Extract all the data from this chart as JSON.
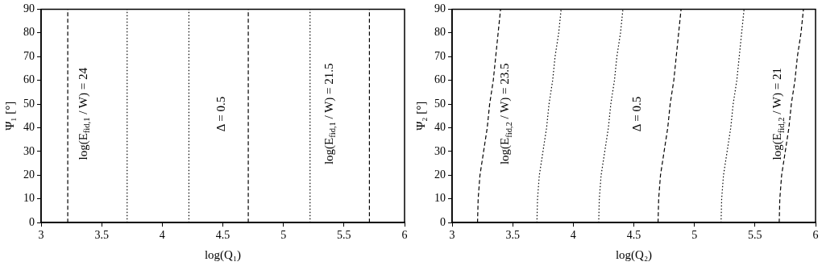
{
  "chart_data": [
    {
      "type": "line",
      "xlabel": "log(Q₁)",
      "ylabel": "Ψ₁ [°]",
      "xlim": [
        3,
        6
      ],
      "ylim": [
        0,
        90
      ],
      "xticks": [
        3,
        3.5,
        4,
        4.5,
        5,
        5.5,
        6
      ],
      "yticks": [
        0,
        10,
        20,
        30,
        40,
        50,
        60,
        70,
        80,
        90
      ],
      "grid": false,
      "legend": false,
      "marker": "none",
      "series": [
        {
          "color": "#000000",
          "line_style": "dashed",
          "x": [
            3.22,
            3.22
          ],
          "values": [
            0,
            90
          ]
        },
        {
          "color": "#000000",
          "line_style": "dotted",
          "x": [
            3.71,
            3.71
          ],
          "values": [
            0,
            90
          ]
        },
        {
          "color": "#000000",
          "line_style": "dotted",
          "x": [
            4.22,
            4.22
          ],
          "values": [
            0,
            90
          ]
        },
        {
          "color": "#000000",
          "line_style": "dashed",
          "x": [
            4.71,
            4.71
          ],
          "values": [
            0,
            90
          ]
        },
        {
          "color": "#000000",
          "line_style": "dotted",
          "x": [
            5.22,
            5.22
          ],
          "values": [
            0,
            90
          ]
        },
        {
          "color": "#000000",
          "line_style": "dashed",
          "x": [
            5.71,
            5.71
          ],
          "values": [
            0,
            90
          ]
        }
      ],
      "annotations": [
        "log(E$_{fid,1}$ / W) = 24",
        "Δ = 0.5",
        "log(E$_{fid,1}$ / W) = 21.5"
      ]
    },
    {
      "type": "line",
      "xlabel": "log(Q₂)",
      "ylabel": "Ψ₂ [°]",
      "xlim": [
        3,
        6
      ],
      "ylim": [
        0,
        90
      ],
      "xticks": [
        3,
        3.5,
        4,
        4.5,
        5,
        5.5,
        6
      ],
      "yticks": [
        0,
        10,
        20,
        30,
        40,
        50,
        60,
        70,
        80,
        90
      ],
      "grid": false,
      "legend": false,
      "marker": "none",
      "series": [
        {
          "color": "#000000",
          "line_style": "dashed",
          "x": [
            3.21,
            3.215,
            3.23,
            3.26,
            3.29,
            3.31,
            3.34,
            3.36,
            3.38,
            3.4
          ],
          "values": [
            0,
            10,
            20,
            30,
            40,
            50,
            60,
            70,
            80,
            90
          ]
        },
        {
          "color": "#000000",
          "line_style": "dotted",
          "x": [
            3.7,
            3.705,
            3.72,
            3.75,
            3.78,
            3.8,
            3.83,
            3.85,
            3.88,
            3.9
          ],
          "values": [
            0,
            10,
            20,
            30,
            40,
            50,
            60,
            70,
            80,
            90
          ]
        },
        {
          "color": "#000000",
          "line_style": "dotted",
          "x": [
            4.21,
            4.215,
            4.23,
            4.26,
            4.29,
            4.31,
            4.34,
            4.36,
            4.39,
            4.41
          ],
          "values": [
            0,
            10,
            20,
            30,
            40,
            50,
            60,
            70,
            80,
            90
          ]
        },
        {
          "color": "#000000",
          "line_style": "dashed",
          "x": [
            4.7,
            4.705,
            4.72,
            4.75,
            4.78,
            4.8,
            4.83,
            4.85,
            4.87,
            4.89
          ],
          "values": [
            0,
            10,
            20,
            30,
            40,
            50,
            60,
            70,
            80,
            90
          ]
        },
        {
          "color": "#000000",
          "line_style": "dotted",
          "x": [
            5.22,
            5.225,
            5.24,
            5.27,
            5.3,
            5.32,
            5.35,
            5.37,
            5.39,
            5.41
          ],
          "values": [
            0,
            10,
            20,
            30,
            40,
            50,
            60,
            70,
            80,
            90
          ]
        },
        {
          "color": "#000000",
          "line_style": "dashed",
          "x": [
            5.7,
            5.705,
            5.72,
            5.75,
            5.78,
            5.8,
            5.83,
            5.85,
            5.88,
            5.9
          ],
          "values": [
            0,
            10,
            20,
            30,
            40,
            50,
            60,
            70,
            80,
            90
          ]
        }
      ],
      "annotations": [
        "log(E$_{fid,2}$ / W) = 23.5",
        "Δ = 0.5",
        "log(E$_{fid,2}$ / W) = 21"
      ]
    }
  ]
}
